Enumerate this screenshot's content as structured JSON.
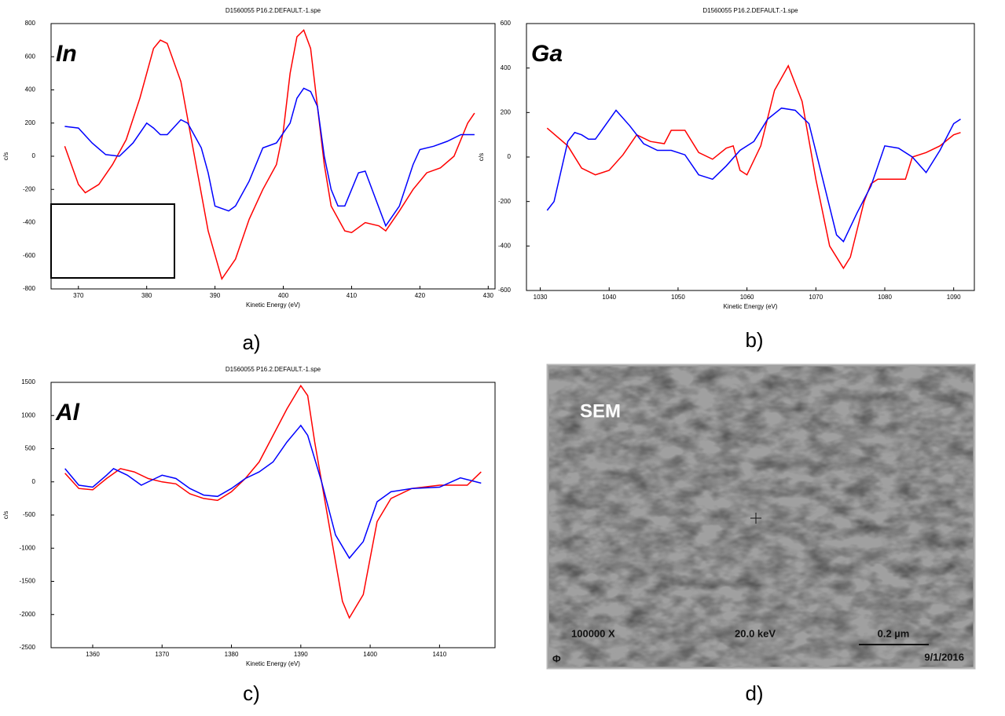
{
  "chart_data": [
    {
      "type": "line",
      "title": "D1560055 P16.2.DEFAULT.-1.spe",
      "annotation": "In",
      "x_label": "Kinetic Energy (eV)",
      "y_label": "c/s",
      "panel_label": "a)",
      "xlim": [
        366,
        431
      ],
      "xticks": [
        370,
        380,
        390,
        400,
        410,
        420,
        430
      ],
      "ylim": [
        -800,
        800
      ],
      "yticks": [
        -800,
        -600,
        -400,
        -200,
        0,
        200,
        400,
        600,
        800
      ],
      "series": [
        {
          "color": "#ff0000",
          "x": [
            368,
            370,
            371,
            373,
            375,
            377,
            379,
            381,
            382,
            383,
            385,
            387,
            389,
            391,
            393,
            395,
            397,
            399,
            400,
            401,
            402,
            403,
            404,
            405,
            406,
            407,
            409,
            410,
            412,
            414,
            415,
            417,
            419,
            421,
            423,
            425,
            427,
            428
          ],
          "values": [
            60,
            -170,
            -220,
            -170,
            -50,
            100,
            350,
            650,
            700,
            680,
            450,
            0,
            -450,
            -740,
            -620,
            -380,
            -200,
            -50,
            150,
            500,
            720,
            760,
            650,
            300,
            -50,
            -300,
            -450,
            -460,
            -400,
            -420,
            -450,
            -330,
            -200,
            -100,
            -70,
            0,
            200,
            260
          ]
        },
        {
          "color": "#0000ff",
          "x": [
            368,
            370,
            372,
            374,
            376,
            378,
            380,
            381,
            382,
            383,
            385,
            386,
            388,
            389,
            390,
            392,
            393,
            395,
            397,
            399,
            401,
            402,
            403,
            404,
            405,
            406,
            407,
            408,
            409,
            410,
            411,
            412,
            413,
            415,
            417,
            419,
            420,
            422,
            424,
            426,
            428
          ],
          "values": [
            180,
            170,
            80,
            10,
            0,
            80,
            200,
            170,
            130,
            130,
            220,
            200,
            50,
            -100,
            -300,
            -330,
            -300,
            -150,
            50,
            80,
            200,
            350,
            410,
            390,
            300,
            0,
            -200,
            -300,
            -300,
            -200,
            -100,
            -90,
            -200,
            -420,
            -300,
            -50,
            40,
            60,
            90,
            130,
            130
          ]
        }
      ]
    },
    {
      "type": "line",
      "title": "D1560055 P16.2.DEFAULT.-1.spe",
      "annotation": "Ga",
      "x_label": "Kinetic Energy (eV)",
      "y_label": "c/s",
      "panel_label": "b)",
      "xlim": [
        1028,
        1093
      ],
      "xticks": [
        1030,
        1040,
        1050,
        1060,
        1070,
        1080,
        1090
      ],
      "ylim": [
        -600,
        600
      ],
      "yticks": [
        -600,
        -400,
        -200,
        0,
        200,
        400,
        600
      ],
      "series": [
        {
          "color": "#ff0000",
          "x": [
            1031,
            1034,
            1036,
            1038,
            1040,
            1042,
            1044,
            1046,
            1048,
            1049,
            1051,
            1053,
            1055,
            1057,
            1058,
            1059,
            1060,
            1062,
            1064,
            1066,
            1068,
            1070,
            1072,
            1074,
            1075,
            1077,
            1078,
            1079,
            1082,
            1083,
            1084,
            1086,
            1088,
            1090,
            1091
          ],
          "values": [
            130,
            50,
            -50,
            -80,
            -60,
            10,
            100,
            70,
            60,
            120,
            120,
            20,
            -10,
            40,
            50,
            -60,
            -80,
            50,
            300,
            410,
            250,
            -100,
            -400,
            -500,
            -450,
            -200,
            -120,
            -100,
            -100,
            -100,
            0,
            20,
            50,
            100,
            110
          ]
        },
        {
          "color": "#0000ff",
          "x": [
            1031,
            1032,
            1034,
            1035,
            1036,
            1037,
            1038,
            1041,
            1043,
            1045,
            1047,
            1049,
            1051,
            1053,
            1055,
            1057,
            1059,
            1061,
            1063,
            1065,
            1067,
            1069,
            1071,
            1073,
            1074,
            1076,
            1078,
            1080,
            1082,
            1084,
            1086,
            1088,
            1090,
            1091
          ],
          "values": [
            -240,
            -200,
            70,
            110,
            100,
            80,
            80,
            210,
            140,
            60,
            30,
            30,
            10,
            -80,
            -100,
            -40,
            30,
            70,
            170,
            220,
            210,
            150,
            -100,
            -350,
            -380,
            -250,
            -130,
            50,
            40,
            0,
            -70,
            30,
            150,
            170
          ]
        }
      ]
    },
    {
      "type": "line",
      "title": "D1560055 P16.2.DEFAULT.-1.spe",
      "annotation": "Al",
      "x_label": "Kinetic Energy (eV)",
      "y_label": "c/s",
      "panel_label": "c)",
      "xlim": [
        1354,
        1418
      ],
      "xticks": [
        1360,
        1370,
        1380,
        1390,
        1400,
        1410
      ],
      "ylim": [
        -2500,
        1500
      ],
      "yticks": [
        -2500,
        -2000,
        -1500,
        -1000,
        -500,
        0,
        500,
        1000,
        1500
      ],
      "series": [
        {
          "color": "#ff0000",
          "x": [
            1356,
            1358,
            1360,
            1362,
            1364,
            1366,
            1368,
            1370,
            1372,
            1374,
            1376,
            1378,
            1380,
            1382,
            1384,
            1386,
            1388,
            1390,
            1391,
            1392,
            1394,
            1396,
            1397,
            1399,
            1401,
            1403,
            1406,
            1410,
            1414,
            1416
          ],
          "values": [
            130,
            -100,
            -120,
            50,
            200,
            150,
            50,
            0,
            -30,
            -180,
            -250,
            -280,
            -150,
            50,
            300,
            700,
            1100,
            1450,
            1300,
            600,
            -600,
            -1800,
            -2050,
            -1700,
            -600,
            -250,
            -100,
            -50,
            -50,
            150
          ]
        },
        {
          "color": "#0000ff",
          "x": [
            1356,
            1358,
            1360,
            1362,
            1363,
            1365,
            1367,
            1369,
            1370,
            1372,
            1374,
            1376,
            1378,
            1380,
            1382,
            1384,
            1386,
            1388,
            1390,
            1391,
            1393,
            1395,
            1397,
            1399,
            1401,
            1403,
            1406,
            1410,
            1413,
            1416
          ],
          "values": [
            200,
            -50,
            -80,
            100,
            200,
            100,
            -50,
            50,
            100,
            50,
            -100,
            -200,
            -220,
            -100,
            50,
            150,
            300,
            600,
            850,
            700,
            0,
            -800,
            -1150,
            -900,
            -300,
            -150,
            -100,
            -80,
            60,
            -20
          ]
        }
      ]
    }
  ],
  "sem": {
    "title": "SEM",
    "magnification": "100000 X",
    "voltage": "20.0 keV",
    "scale": "0.2 µm",
    "date": "9/1/2016",
    "logo": "Φ",
    "panel_label": "d)"
  }
}
